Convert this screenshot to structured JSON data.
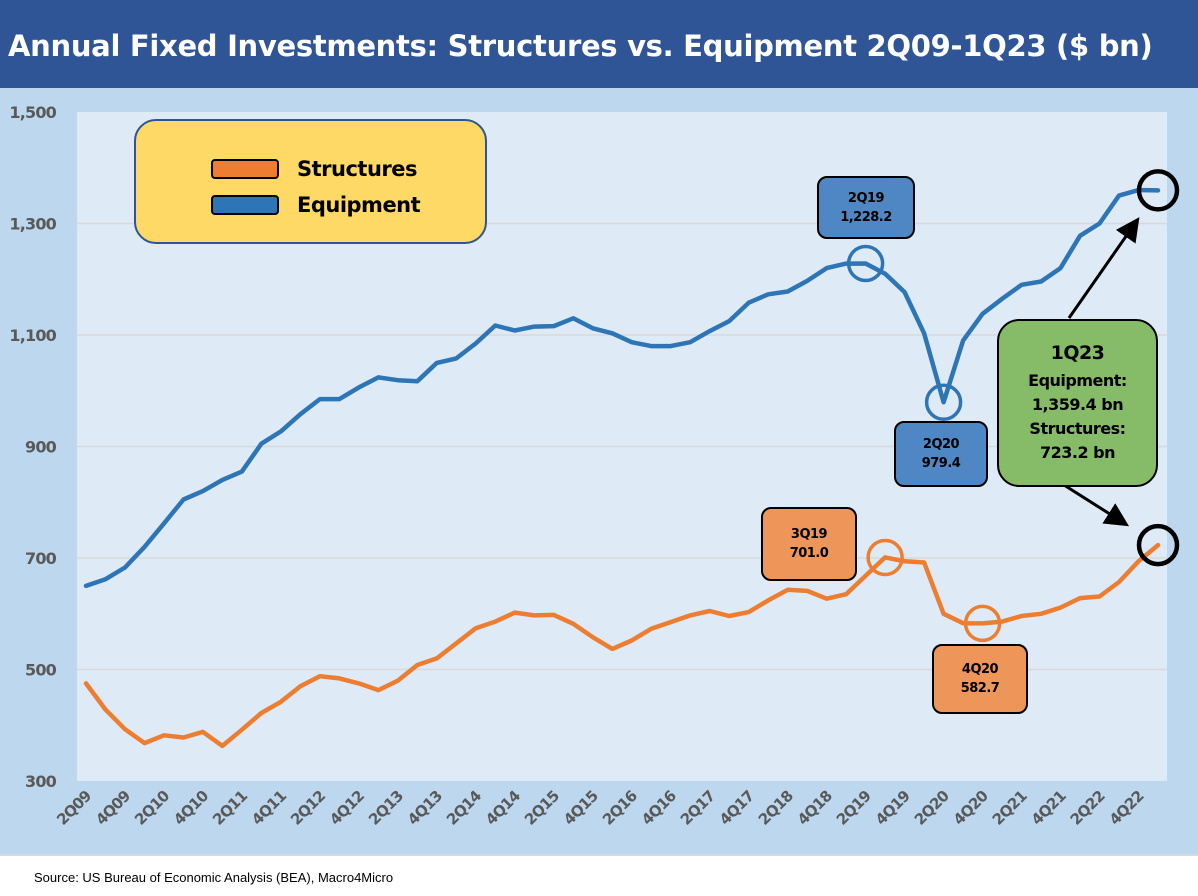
{
  "title": "Annual Fixed Investments: Structures vs. Equipment  2Q09-1Q23 ($ bn)",
  "source": "Source: US Bureau of Economic Analysis (BEA), Macro4Micro",
  "colors": {
    "structures": "#ED7D31",
    "equipment": "#2E75B6",
    "title_bg": "#2F5597",
    "plot_bg": "#DEEBF7",
    "outer_bg": "#BDD7EE"
  },
  "chart_data": {
    "type": "line",
    "title": "Annual Fixed Investments: Structures vs. Equipment  2Q09-1Q23 ($ bn)",
    "xlabel": "",
    "ylabel": "",
    "ylim": [
      300,
      1500
    ],
    "yticks": [
      300,
      500,
      700,
      900,
      1100,
      1300,
      1500
    ],
    "ytick_labels": [
      "300",
      "500",
      "700",
      "900",
      "1,100",
      "1,300",
      "1,500"
    ],
    "grid": true,
    "legend_position": "top-left",
    "x": [
      "2Q09",
      "3Q09",
      "4Q09",
      "1Q10",
      "2Q10",
      "3Q10",
      "4Q10",
      "1Q11",
      "2Q11",
      "3Q11",
      "4Q11",
      "1Q12",
      "2Q12",
      "3Q12",
      "4Q12",
      "1Q13",
      "2Q13",
      "3Q13",
      "4Q13",
      "1Q14",
      "2Q14",
      "3Q14",
      "4Q14",
      "1Q15",
      "2Q15",
      "3Q15",
      "4Q15",
      "1Q16",
      "2Q16",
      "3Q16",
      "4Q16",
      "1Q17",
      "2Q17",
      "3Q17",
      "4Q17",
      "1Q18",
      "2Q18",
      "3Q18",
      "4Q18",
      "1Q19",
      "2Q19",
      "3Q19",
      "4Q19",
      "1Q20",
      "2Q20",
      "3Q20",
      "4Q20",
      "1Q21",
      "2Q21",
      "3Q21",
      "4Q21",
      "1Q22",
      "2Q22",
      "3Q22",
      "4Q22",
      "1Q23"
    ],
    "xtick_labels": [
      "2Q09",
      "4Q09",
      "2Q10",
      "4Q10",
      "2Q11",
      "4Q11",
      "2Q12",
      "4Q12",
      "2Q13",
      "4Q13",
      "2Q14",
      "4Q14",
      "2Q15",
      "4Q15",
      "2Q16",
      "4Q16",
      "2Q17",
      "4Q17",
      "2Q18",
      "4Q18",
      "2Q19",
      "4Q19",
      "2Q20",
      "4Q20",
      "2Q21",
      "4Q21",
      "2Q22",
      "4Q22"
    ],
    "series": [
      {
        "name": "Structures",
        "color": "#ED7D31",
        "values": [
          475,
          428,
          393,
          368,
          382,
          378,
          388,
          363,
          392,
          422,
          442,
          470,
          488,
          484,
          475,
          463,
          480,
          508,
          520,
          547,
          574,
          586,
          602,
          597,
          598,
          582,
          558,
          537,
          552,
          573,
          585,
          597,
          605,
          596,
          603,
          624,
          643,
          641,
          627,
          635,
          668,
          701.0,
          694,
          692,
          600,
          583,
          582.7,
          586,
          596,
          600,
          611,
          628,
          631,
          657,
          694,
          723.2
        ]
      },
      {
        "name": "Equipment",
        "color": "#2E75B6",
        "values": [
          650,
          662,
          683,
          720,
          762,
          805,
          820,
          840,
          855,
          905,
          927,
          958,
          985,
          985,
          1006,
          1024,
          1019,
          1017,
          1050,
          1058,
          1085,
          1117,
          1108,
          1115,
          1116,
          1130,
          1112,
          1103,
          1087,
          1080,
          1080,
          1087,
          1107,
          1125,
          1158,
          1173,
          1178,
          1197,
          1220,
          1228,
          1228.2,
          1210,
          1177,
          1103,
          979.4,
          1090,
          1138,
          1165,
          1190,
          1196,
          1220,
          1278,
          1300,
          1350,
          1360,
          1359.4
        ]
      }
    ],
    "annotations": [
      {
        "period": "2Q19",
        "value": "1,228.2",
        "series": "Equipment"
      },
      {
        "period": "2Q20",
        "value": "979.4",
        "series": "Equipment"
      },
      {
        "period": "3Q19",
        "value": "701.0",
        "series": "Structures"
      },
      {
        "period": "4Q20",
        "value": "582.7",
        "series": "Structures"
      },
      {
        "period": "1Q23",
        "line1": "Equipment:",
        "line2": "1,359.4 bn",
        "line3": "Structures:",
        "line4": "723.2 bn"
      }
    ]
  }
}
